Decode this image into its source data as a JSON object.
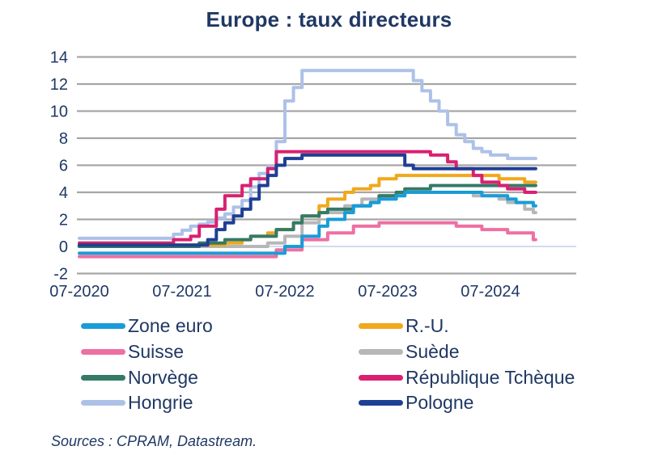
{
  "title": "Europe : taux directeurs",
  "source": "Sources : CPRAM, Datastream.",
  "colors": {
    "text": "#1f3864",
    "gridline": "#a6a6a6",
    "zero_line": "#cbd6ef",
    "background": "#ffffff"
  },
  "chart_data": {
    "type": "line",
    "title": "Europe : taux directeurs",
    "line_style": "step-after",
    "x_start": "07-2020",
    "x_end": "12-2024",
    "x_frequency": "monthly",
    "x_tick_labels": [
      "07-2020",
      "07-2021",
      "07-2022",
      "07-2023",
      "07-2024"
    ],
    "x_tick_month_indices": [
      0,
      12,
      24,
      36,
      48
    ],
    "y_ticks": [
      -2,
      0,
      2,
      4,
      6,
      8,
      10,
      12,
      14
    ],
    "ylim": [
      -2,
      14
    ],
    "grid": "horizontal",
    "legend_position": "bottom",
    "ylabel": "",
    "xlabel": "",
    "legend_order": [
      "Zone euro",
      "R.-U.",
      "Suisse",
      "Suède",
      "Norvège",
      "République Tchèque",
      "Hongrie",
      "Pologne"
    ],
    "series": [
      {
        "name": "Hongrie",
        "key": "hongrie",
        "color": "#adc1e8",
        "values": [
          0.6,
          0.6,
          0.6,
          0.6,
          0.6,
          0.6,
          0.6,
          0.6,
          0.6,
          0.6,
          0.6,
          0.9,
          1.2,
          1.5,
          1.65,
          1.8,
          2.1,
          2.4,
          2.9,
          3.4,
          4.4,
          5.4,
          5.9,
          7.75,
          10.75,
          11.75,
          13,
          13,
          13,
          13,
          13,
          13,
          13,
          13,
          13,
          13,
          13,
          13,
          13,
          12.25,
          11.5,
          10.75,
          10,
          9,
          8.25,
          7.75,
          7.25,
          7,
          6.75,
          6.75,
          6.5,
          6.5,
          6.5,
          6.5
        ]
      },
      {
        "name": "Suisse",
        "key": "suisse",
        "color": "#ee6fa3",
        "values": [
          -0.75,
          -0.75,
          -0.75,
          -0.75,
          -0.75,
          -0.75,
          -0.75,
          -0.75,
          -0.75,
          -0.75,
          -0.75,
          -0.75,
          -0.75,
          -0.75,
          -0.75,
          -0.75,
          -0.75,
          -0.75,
          -0.75,
          -0.75,
          -0.75,
          -0.75,
          -0.75,
          -0.25,
          -0.25,
          -0.25,
          0.5,
          0.5,
          0.5,
          1,
          1,
          1,
          1.5,
          1.5,
          1.5,
          1.75,
          1.75,
          1.75,
          1.75,
          1.75,
          1.75,
          1.75,
          1.75,
          1.75,
          1.5,
          1.5,
          1.5,
          1.25,
          1.25,
          1.25,
          1,
          1,
          1,
          0.5
        ]
      },
      {
        "name": "Suède",
        "key": "suede",
        "color": "#b5b7b9",
        "values": [
          0,
          0,
          0,
          0,
          0,
          0,
          0,
          0,
          0,
          0,
          0,
          0,
          0,
          0,
          0,
          0,
          0,
          0,
          0,
          0,
          0,
          0,
          0.25,
          0.25,
          0.75,
          0.75,
          1.75,
          1.75,
          2.5,
          2.5,
          2.5,
          3,
          3,
          3.5,
          3.5,
          3.75,
          3.75,
          3.75,
          4,
          4,
          4,
          4,
          4,
          4,
          4,
          4,
          3.75,
          3.75,
          3.75,
          3.5,
          3.25,
          3.25,
          2.75,
          2.5
        ]
      },
      {
        "name": "R.-U.",
        "key": "ru",
        "color": "#f0a81c",
        "values": [
          0.1,
          0.1,
          0.1,
          0.1,
          0.1,
          0.1,
          0.1,
          0.1,
          0.1,
          0.1,
          0.1,
          0.1,
          0.1,
          0.1,
          0.1,
          0.1,
          0.1,
          0.25,
          0.25,
          0.5,
          0.75,
          0.75,
          1,
          1.25,
          1.25,
          1.75,
          2.25,
          2.25,
          3,
          3.5,
          3.5,
          4,
          4.25,
          4.25,
          4.5,
          5,
          5,
          5.25,
          5.25,
          5.25,
          5.25,
          5.25,
          5.25,
          5.25,
          5.25,
          5.25,
          5.25,
          5.25,
          5.25,
          5,
          5,
          5,
          4.75,
          4.75
        ]
      },
      {
        "name": "Norvège",
        "key": "norvege",
        "color": "#347a67",
        "values": [
          0,
          0,
          0,
          0,
          0,
          0,
          0,
          0,
          0,
          0,
          0,
          0,
          0,
          0,
          0.25,
          0.25,
          0.25,
          0.5,
          0.5,
          0.5,
          0.75,
          0.75,
          0.75,
          1.25,
          1.25,
          1.75,
          2.25,
          2.25,
          2.5,
          2.75,
          2.75,
          2.75,
          3,
          3,
          3.25,
          3.75,
          3.75,
          4,
          4.25,
          4.25,
          4.25,
          4.5,
          4.5,
          4.5,
          4.5,
          4.5,
          4.5,
          4.5,
          4.5,
          4.5,
          4.5,
          4.5,
          4.5,
          4.5
        ]
      },
      {
        "name": "Zone euro",
        "key": "zone-euro",
        "color": "#199cd8",
        "values": [
          -0.5,
          -0.5,
          -0.5,
          -0.5,
          -0.5,
          -0.5,
          -0.5,
          -0.5,
          -0.5,
          -0.5,
          -0.5,
          -0.5,
          -0.5,
          -0.5,
          -0.5,
          -0.5,
          -0.5,
          -0.5,
          -0.5,
          -0.5,
          -0.5,
          -0.5,
          -0.5,
          -0.5,
          0,
          0,
          0.75,
          0.75,
          1.5,
          2,
          2,
          2.5,
          3,
          3,
          3.25,
          3.5,
          3.5,
          3.75,
          4,
          4,
          4,
          4,
          4,
          4,
          4,
          4,
          4,
          3.75,
          3.75,
          3.75,
          3.5,
          3.25,
          3.25,
          3
        ]
      },
      {
        "name": "République Tchèque",
        "key": "republique-tcheque",
        "color": "#d92170",
        "values": [
          0.25,
          0.25,
          0.25,
          0.25,
          0.25,
          0.25,
          0.25,
          0.25,
          0.25,
          0.25,
          0.25,
          0.5,
          0.5,
          0.75,
          1.5,
          1.5,
          2.75,
          3.75,
          3.75,
          4.5,
          5,
          5,
          5.75,
          7,
          7,
          7,
          7,
          7,
          7,
          7,
          7,
          7,
          7,
          7,
          7,
          7,
          7,
          7,
          7,
          7,
          7,
          6.75,
          6.75,
          6.25,
          5.75,
          5.75,
          5.25,
          4.75,
          4.75,
          4.5,
          4.25,
          4.25,
          4,
          4
        ]
      },
      {
        "name": "Pologne",
        "key": "pologne",
        "color": "#1f3f94",
        "values": [
          0.1,
          0.1,
          0.1,
          0.1,
          0.1,
          0.1,
          0.1,
          0.1,
          0.1,
          0.1,
          0.1,
          0.1,
          0.1,
          0.1,
          0.1,
          0.5,
          1.25,
          1.75,
          2.25,
          2.75,
          3.5,
          4.5,
          5.25,
          6,
          6.5,
          6.5,
          6.75,
          6.75,
          6.75,
          6.75,
          6.75,
          6.75,
          6.75,
          6.75,
          6.75,
          6.75,
          6.75,
          6.75,
          6,
          5.75,
          5.75,
          5.75,
          5.75,
          5.75,
          5.75,
          5.75,
          5.75,
          5.75,
          5.75,
          5.75,
          5.75,
          5.75,
          5.75,
          5.75
        ]
      }
    ]
  }
}
